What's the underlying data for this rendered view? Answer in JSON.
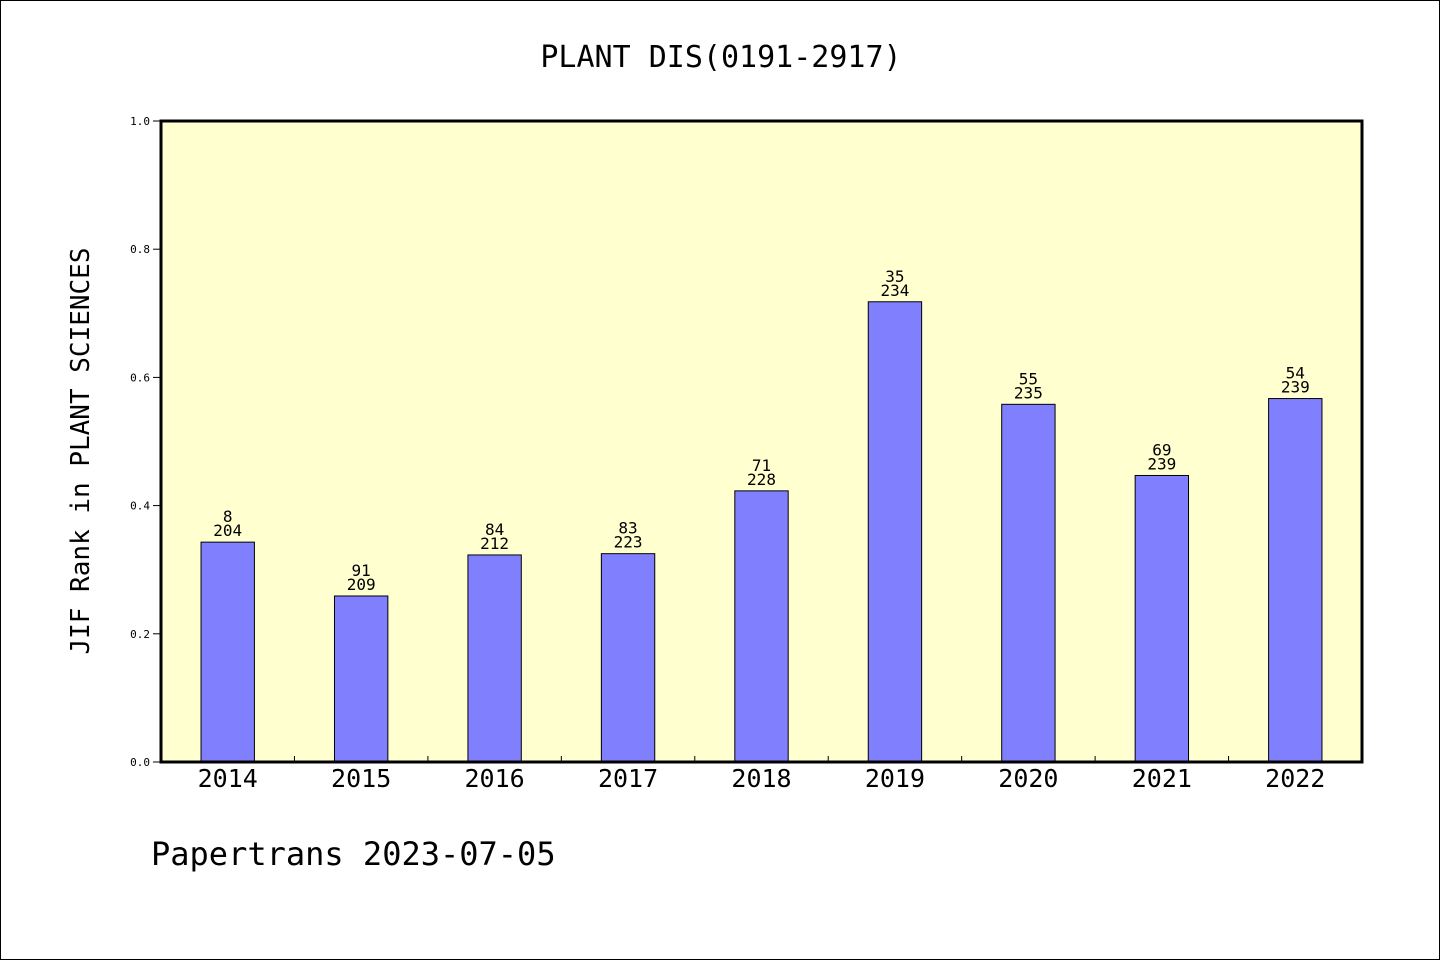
{
  "chart_data": {
    "type": "bar",
    "title": "PLANT DIS(0191-2917)",
    "xlabel": "",
    "ylabel": "JIF Rank in PLANT SCIENCES",
    "categories": [
      "2014",
      "2015",
      "2016",
      "2017",
      "2018",
      "2019",
      "2020",
      "2021",
      "2022"
    ],
    "values": [
      0.343,
      0.259,
      0.323,
      0.325,
      0.423,
      0.718,
      0.558,
      0.447,
      0.567
    ],
    "ranks": [
      "8",
      "91",
      "84",
      "83",
      "71",
      "35",
      "55",
      "69",
      "54"
    ],
    "totals": [
      "204",
      "209",
      "212",
      "223",
      "228",
      "234",
      "235",
      "239",
      "239"
    ],
    "ylim": [
      0,
      1.0
    ],
    "yticks": [
      "0.0",
      "0.2",
      "0.4",
      "0.6",
      "0.8",
      "1.0"
    ],
    "ytick_values": [
      0,
      0.2,
      0.4,
      0.6,
      0.8,
      1.0
    ],
    "grid": false,
    "legend": "none",
    "colors": {
      "bar": "#8080ff",
      "plot_background": "#ffffd0",
      "axis": "#000000"
    }
  },
  "footer": {
    "text": "Papertrans 2023-07-05"
  }
}
